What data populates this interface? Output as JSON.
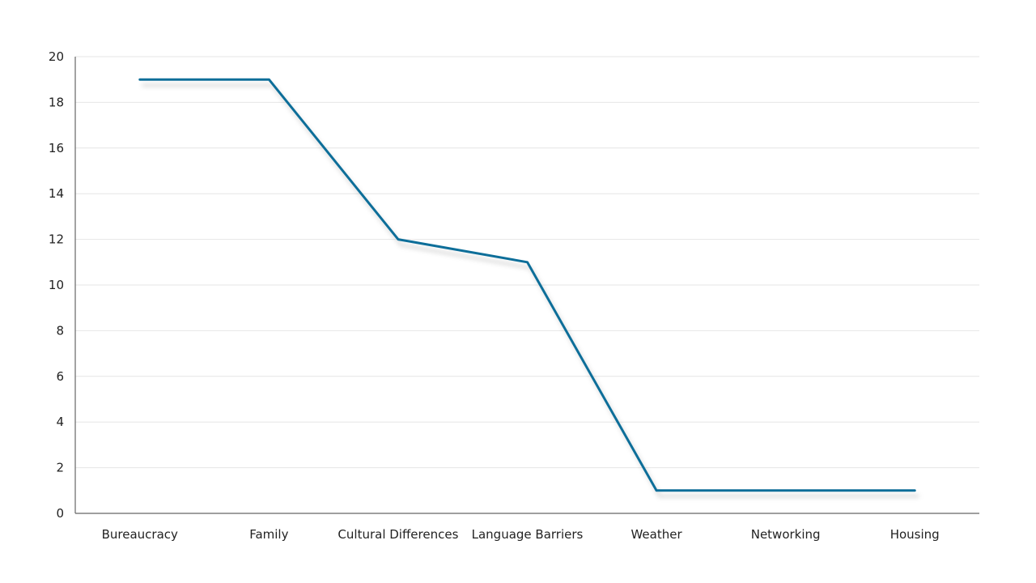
{
  "chart_data": {
    "type": "line",
    "categories": [
      "Bureaucracy",
      "Family",
      "Cultural Differences",
      "Language Barriers",
      "Weather",
      "Networking",
      "Housing"
    ],
    "series": [
      {
        "values": [
          19,
          19,
          12,
          11,
          1,
          1,
          1
        ]
      }
    ],
    "ylim": [
      0,
      20
    ],
    "yticks": [
      0,
      2,
      4,
      6,
      8,
      10,
      12,
      14,
      16,
      18,
      20
    ],
    "grid": true,
    "legend": "none",
    "colors": {
      "line": "#0f6e99",
      "grid": "#e6e6e6",
      "axis": "#666666",
      "text": "#222222"
    }
  }
}
